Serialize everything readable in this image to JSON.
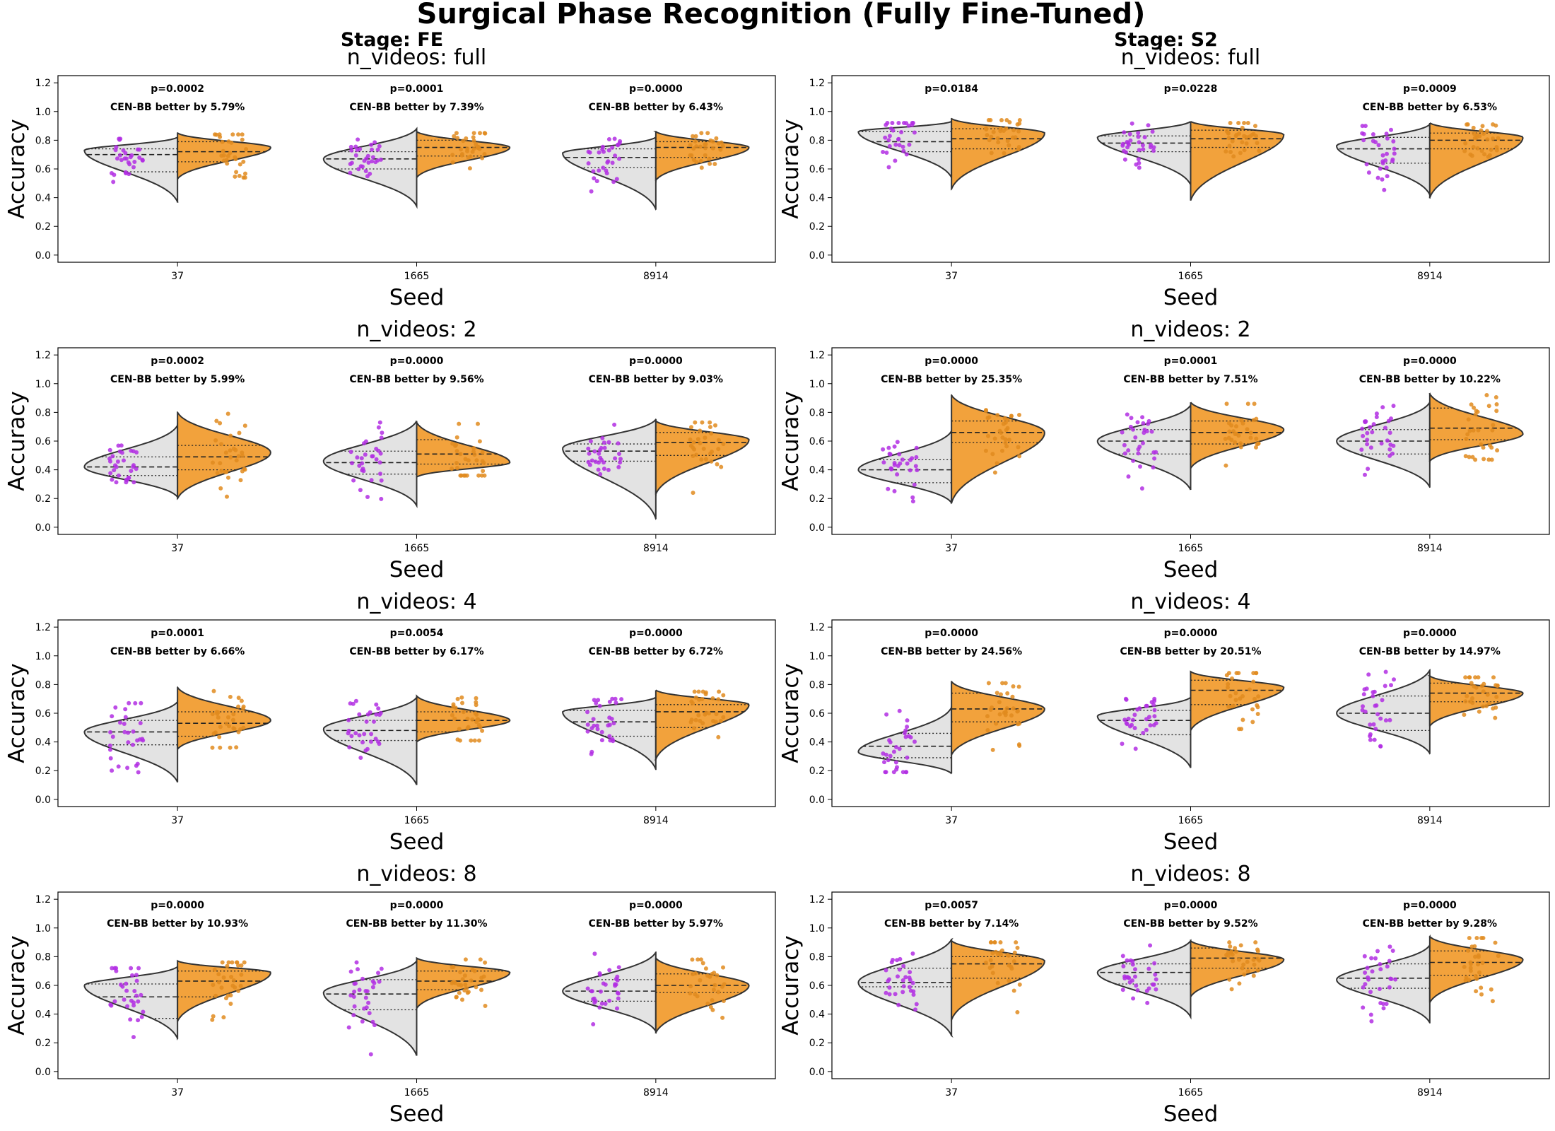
{
  "chart_data": {
    "type": "split-violin",
    "title": "Surgical Phase Recognition (Fully Fine-Tuned)",
    "stages": [
      {
        "label": "Stage: FE",
        "panels": [
          {
            "title": "n_videos: full",
            "groups": [
              {
                "seed": "37",
                "p": "p=0.0002",
                "diff": "CEN-BB better by 5.79%",
                "left": {
                  "median": 0.7,
                  "q1": 0.58,
                  "q3": 0.74,
                  "min": 0.37,
                  "max": 0.82,
                  "mode": 0.73,
                  "width": 0.95
                },
                "right": {
                  "median": 0.72,
                  "q1": 0.65,
                  "q3": 0.79,
                  "min": 0.53,
                  "max": 0.85,
                  "mode": 0.75,
                  "width": 0.95
                }
              },
              {
                "seed": "1665",
                "p": "p=0.0001",
                "diff": "CEN-BB better by 7.39%",
                "left": {
                  "median": 0.67,
                  "q1": 0.6,
                  "q3": 0.72,
                  "min": 0.34,
                  "max": 0.88,
                  "mode": 0.67,
                  "width": 0.95
                },
                "right": {
                  "median": 0.75,
                  "q1": 0.69,
                  "q3": 0.8,
                  "min": 0.54,
                  "max": 0.86,
                  "mode": 0.75,
                  "width": 0.95
                }
              },
              {
                "seed": "8914",
                "p": "p=0.0000",
                "diff": "CEN-BB better by 6.43%",
                "left": {
                  "median": 0.68,
                  "q1": 0.61,
                  "q3": 0.74,
                  "min": 0.32,
                  "max": 0.82,
                  "mode": 0.71,
                  "width": 0.95
                },
                "right": {
                  "median": 0.75,
                  "q1": 0.68,
                  "q3": 0.79,
                  "min": 0.52,
                  "max": 0.86,
                  "mode": 0.75,
                  "width": 0.95
                }
              }
            ]
          },
          {
            "title": "n_videos: 2",
            "groups": [
              {
                "seed": "37",
                "p": "p=0.0002",
                "diff": "CEN-BB better by 5.99%",
                "left": {
                  "median": 0.42,
                  "q1": 0.36,
                  "q3": 0.49,
                  "min": 0.21,
                  "max": 0.71,
                  "mode": 0.42,
                  "width": 0.95
                },
                "right": {
                  "median": 0.49,
                  "q1": 0.4,
                  "q3": 0.57,
                  "min": 0.2,
                  "max": 0.8,
                  "mode": 0.52,
                  "width": 0.95
                }
              },
              {
                "seed": "1665",
                "p": "p=0.0000",
                "diff": "CEN-BB better by 9.56%",
                "left": {
                  "median": 0.45,
                  "q1": 0.37,
                  "q3": 0.53,
                  "min": 0.15,
                  "max": 0.74,
                  "mode": 0.46,
                  "width": 0.95
                },
                "right": {
                  "median": 0.51,
                  "q1": 0.44,
                  "q3": 0.61,
                  "min": 0.35,
                  "max": 0.73,
                  "mode": 0.45,
                  "width": 0.95
                }
              },
              {
                "seed": "8914",
                "p": "p=0.0000",
                "diff": "CEN-BB better by 9.03%",
                "left": {
                  "median": 0.53,
                  "q1": 0.46,
                  "q3": 0.58,
                  "min": 0.06,
                  "max": 0.75,
                  "mode": 0.55,
                  "width": 0.95
                },
                "right": {
                  "median": 0.59,
                  "q1": 0.5,
                  "q3": 0.66,
                  "min": 0.23,
                  "max": 0.74,
                  "mode": 0.61,
                  "width": 0.95
                }
              }
            ]
          },
          {
            "title": "n_videos: 4",
            "groups": [
              {
                "seed": "37",
                "p": "p=0.0001",
                "diff": "CEN-BB better by 6.66%",
                "left": {
                  "median": 0.47,
                  "q1": 0.38,
                  "q3": 0.55,
                  "min": 0.12,
                  "max": 0.68,
                  "mode": 0.47,
                  "width": 0.95
                },
                "right": {
                  "median": 0.53,
                  "q1": 0.44,
                  "q3": 0.61,
                  "min": 0.35,
                  "max": 0.78,
                  "mode": 0.55,
                  "width": 0.95
                }
              },
              {
                "seed": "1665",
                "p": "p=0.0054",
                "diff": "CEN-BB better by 6.17%",
                "left": {
                  "median": 0.48,
                  "q1": 0.41,
                  "q3": 0.55,
                  "min": 0.1,
                  "max": 0.71,
                  "mode": 0.49,
                  "width": 0.95
                },
                "right": {
                  "median": 0.55,
                  "q1": 0.47,
                  "q3": 0.61,
                  "min": 0.4,
                  "max": 0.72,
                  "mode": 0.55,
                  "width": 0.95
                }
              },
              {
                "seed": "8914",
                "p": "p=0.0000",
                "diff": "CEN-BB better by 6.72%",
                "left": {
                  "median": 0.54,
                  "q1": 0.44,
                  "q3": 0.62,
                  "min": 0.21,
                  "max": 0.71,
                  "mode": 0.61,
                  "width": 0.95
                },
                "right": {
                  "median": 0.61,
                  "q1": 0.5,
                  "q3": 0.66,
                  "min": 0.28,
                  "max": 0.76,
                  "mode": 0.66,
                  "width": 0.95
                }
              }
            ]
          },
          {
            "title": "n_videos: 8",
            "groups": [
              {
                "seed": "37",
                "p": "p=0.0000",
                "diff": "CEN-BB better by 10.93%",
                "left": {
                  "median": 0.52,
                  "q1": 0.37,
                  "q3": 0.61,
                  "min": 0.23,
                  "max": 0.73,
                  "mode": 0.6,
                  "width": 0.95
                },
                "right": {
                  "median": 0.63,
                  "q1": 0.52,
                  "q3": 0.7,
                  "min": 0.35,
                  "max": 0.77,
                  "mode": 0.69,
                  "width": 0.95
                }
              },
              {
                "seed": "1665",
                "p": "p=0.0000",
                "diff": "CEN-BB better by 11.30%",
                "left": {
                  "median": 0.54,
                  "q1": 0.43,
                  "q3": 0.64,
                  "min": 0.11,
                  "max": 0.77,
                  "mode": 0.55,
                  "width": 0.95
                },
                "right": {
                  "median": 0.63,
                  "q1": 0.57,
                  "q3": 0.7,
                  "min": 0.44,
                  "max": 0.79,
                  "mode": 0.69,
                  "width": 0.95
                }
              },
              {
                "seed": "8914",
                "p": "p=0.0000",
                "diff": "CEN-BB better by 5.97%",
                "left": {
                  "median": 0.56,
                  "q1": 0.49,
                  "q3": 0.64,
                  "min": 0.28,
                  "max": 0.83,
                  "mode": 0.56,
                  "width": 0.95
                },
                "right": {
                  "median": 0.6,
                  "q1": 0.55,
                  "q3": 0.68,
                  "min": 0.27,
                  "max": 0.79,
                  "mode": 0.6,
                  "width": 0.95
                }
              }
            ]
          }
        ]
      },
      {
        "label": "Stage: S2",
        "panels": [
          {
            "title": "n_videos: full",
            "groups": [
              {
                "seed": "37",
                "p": "p=0.0184",
                "diff": "",
                "left": {
                  "median": 0.79,
                  "q1": 0.72,
                  "q3": 0.86,
                  "min": 0.54,
                  "max": 0.93,
                  "mode": 0.86,
                  "width": 0.95
                },
                "right": {
                  "median": 0.81,
                  "q1": 0.74,
                  "q3": 0.88,
                  "min": 0.46,
                  "max": 0.95,
                  "mode": 0.85,
                  "width": 0.95
                }
              },
              {
                "seed": "1665",
                "p": "p=0.0228",
                "diff": "",
                "left": {
                  "median": 0.78,
                  "q1": 0.72,
                  "q3": 0.83,
                  "min": 0.49,
                  "max": 0.93,
                  "mode": 0.82,
                  "width": 0.95
                },
                "right": {
                  "median": 0.81,
                  "q1": 0.75,
                  "q3": 0.87,
                  "min": 0.38,
                  "max": 0.93,
                  "mode": 0.84,
                  "width": 0.95
                }
              },
              {
                "seed": "8914",
                "p": "p=0.0009",
                "diff": "CEN-BB better by 6.53%",
                "left": {
                  "median": 0.74,
                  "q1": 0.64,
                  "q3": 0.82,
                  "min": 0.42,
                  "max": 0.91,
                  "mode": 0.76,
                  "width": 0.95
                },
                "right": {
                  "median": 0.8,
                  "q1": 0.74,
                  "q3": 0.85,
                  "min": 0.4,
                  "max": 0.92,
                  "mode": 0.82,
                  "width": 0.95
                }
              }
            ]
          },
          {
            "title": "n_videos: 2",
            "groups": [
              {
                "seed": "37",
                "p": "p=0.0000",
                "diff": "CEN-BB better by 25.35%",
                "left": {
                  "median": 0.4,
                  "q1": 0.31,
                  "q3": 0.47,
                  "min": 0.17,
                  "max": 0.67,
                  "mode": 0.4,
                  "width": 0.95
                },
                "right": {
                  "median": 0.66,
                  "q1": 0.59,
                  "q3": 0.74,
                  "min": 0.17,
                  "max": 0.92,
                  "mode": 0.66,
                  "width": 0.95
                }
              },
              {
                "seed": "1665",
                "p": "p=0.0001",
                "diff": "CEN-BB better by 7.51%",
                "left": {
                  "median": 0.6,
                  "q1": 0.51,
                  "q3": 0.68,
                  "min": 0.26,
                  "max": 0.85,
                  "mode": 0.6,
                  "width": 0.95
                },
                "right": {
                  "median": 0.66,
                  "q1": 0.58,
                  "q3": 0.74,
                  "min": 0.41,
                  "max": 0.87,
                  "mode": 0.68,
                  "width": 0.95
                }
              },
              {
                "seed": "8914",
                "p": "p=0.0000",
                "diff": "CEN-BB better by 10.22%",
                "left": {
                  "median": 0.6,
                  "q1": 0.51,
                  "q3": 0.68,
                  "min": 0.28,
                  "max": 0.87,
                  "mode": 0.6,
                  "width": 0.95
                },
                "right": {
                  "median": 0.69,
                  "q1": 0.61,
                  "q3": 0.83,
                  "min": 0.46,
                  "max": 0.93,
                  "mode": 0.65,
                  "width": 0.95
                }
              }
            ]
          },
          {
            "title": "n_videos: 4",
            "groups": [
              {
                "seed": "37",
                "p": "p=0.0000",
                "diff": "CEN-BB better by 24.56%",
                "left": {
                  "median": 0.37,
                  "q1": 0.29,
                  "q3": 0.46,
                  "min": 0.18,
                  "max": 0.64,
                  "mode": 0.33,
                  "width": 0.95
                },
                "right": {
                  "median": 0.63,
                  "q1": 0.54,
                  "q3": 0.74,
                  "min": 0.31,
                  "max": 0.82,
                  "mode": 0.63,
                  "width": 0.95
                }
              },
              {
                "seed": "1665",
                "p": "p=0.0000",
                "diff": "CEN-BB better by 20.51%",
                "left": {
                  "median": 0.55,
                  "q1": 0.45,
                  "q3": 0.62,
                  "min": 0.22,
                  "max": 0.71,
                  "mode": 0.58,
                  "width": 0.95
                },
                "right": {
                  "median": 0.76,
                  "q1": 0.66,
                  "q3": 0.83,
                  "min": 0.48,
                  "max": 0.89,
                  "mode": 0.78,
                  "width": 0.95
                }
              },
              {
                "seed": "8914",
                "p": "p=0.0000",
                "diff": "CEN-BB better by 14.97%",
                "left": {
                  "median": 0.6,
                  "q1": 0.48,
                  "q3": 0.72,
                  "min": 0.32,
                  "max": 0.9,
                  "mode": 0.6,
                  "width": 0.95
                },
                "right": {
                  "median": 0.74,
                  "q1": 0.68,
                  "q3": 0.81,
                  "min": 0.51,
                  "max": 0.86,
                  "mode": 0.74,
                  "width": 0.95
                }
              }
            ]
          },
          {
            "title": "n_videos: 8",
            "groups": [
              {
                "seed": "37",
                "p": "p=0.0057",
                "diff": "CEN-BB better by 7.14%",
                "left": {
                  "median": 0.62,
                  "q1": 0.59,
                  "q3": 0.72,
                  "min": 0.25,
                  "max": 0.92,
                  "mode": 0.62,
                  "width": 0.95
                },
                "right": {
                  "median": 0.75,
                  "q1": 0.65,
                  "q3": 0.8,
                  "min": 0.36,
                  "max": 0.91,
                  "mode": 0.77,
                  "width": 0.95
                }
              },
              {
                "seed": "1665",
                "p": "p=0.0000",
                "diff": "CEN-BB better by 9.52%",
                "left": {
                  "median": 0.69,
                  "q1": 0.61,
                  "q3": 0.75,
                  "min": 0.38,
                  "max": 0.91,
                  "mode": 0.69,
                  "width": 0.95
                },
                "right": {
                  "median": 0.79,
                  "q1": 0.72,
                  "q3": 0.86,
                  "min": 0.52,
                  "max": 0.91,
                  "mode": 0.78,
                  "width": 0.95
                }
              },
              {
                "seed": "8914",
                "p": "p=0.0000",
                "diff": "CEN-BB better by 9.28%",
                "left": {
                  "median": 0.65,
                  "q1": 0.58,
                  "q3": 0.75,
                  "min": 0.34,
                  "max": 0.88,
                  "mode": 0.64,
                  "width": 0.95
                },
                "right": {
                  "median": 0.76,
                  "q1": 0.67,
                  "q3": 0.84,
                  "min": 0.48,
                  "max": 0.94,
                  "mode": 0.78,
                  "width": 0.95
                }
              }
            ]
          }
        ]
      }
    ],
    "xlabel": "Seed",
    "ylabel": "Accuracy",
    "ylim": [
      -0.05,
      1.25
    ],
    "yticks": [
      "0.0",
      "0.2",
      "0.4",
      "0.6",
      "0.8",
      "1.0",
      "1.2"
    ],
    "yticks_values": [
      0.0,
      0.2,
      0.4,
      0.6,
      0.8,
      1.0,
      1.2
    ],
    "colors": {
      "left_fill": "#e3e3e3",
      "right_fill": "#f2a23c",
      "left_points": "#b12ee3",
      "right_points": "#e08b1e",
      "outline": "#333333"
    }
  }
}
